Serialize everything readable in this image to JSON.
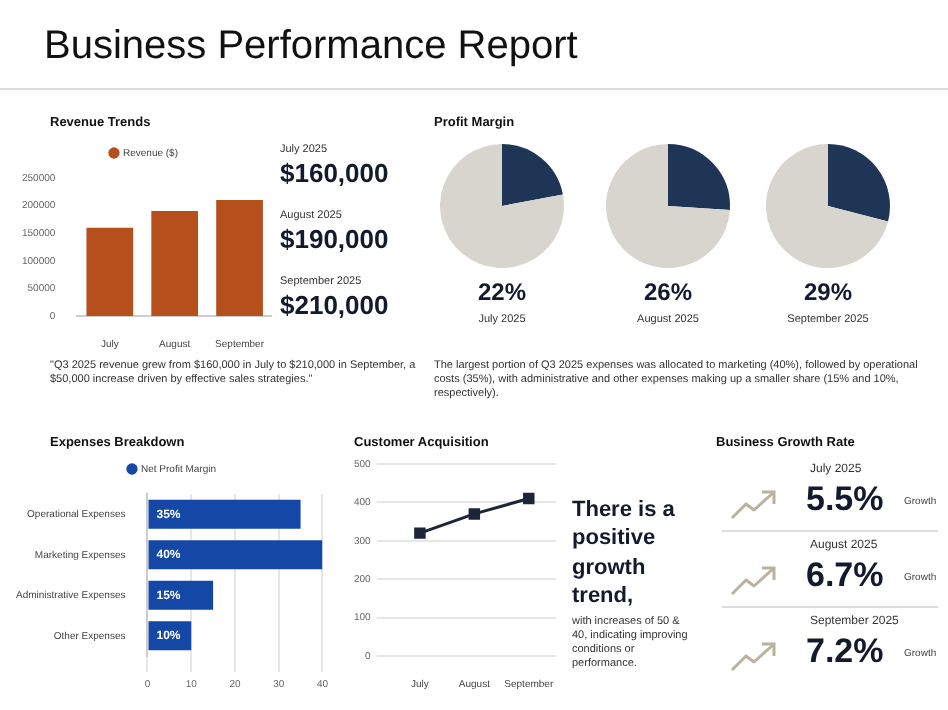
{
  "chart_data": [
    {
      "type": "other",
      "title": "Business Performance Report"
    },
    {
      "type": "bar",
      "title": "Revenue Trends",
      "categories": [
        "July",
        "August",
        "September"
      ],
      "series": [
        {
          "name": "Revenue ($)",
          "color": "#b5501c",
          "values": [
            160000,
            190000,
            210000
          ]
        }
      ],
      "ylim": [
        0,
        250000
      ],
      "yticks": [
        0,
        50000,
        100000,
        150000,
        200000,
        250000
      ],
      "legend": "top",
      "annotations": [
        "July 2025",
        "$160,000",
        "August 2025",
        "$190,000",
        "September 2025",
        "$210,000",
        "\"Q3 2025 revenue grew from $160,000 in July to $210,000 in September, a $50,000 increase driven by effective sales strategies.\""
      ]
    },
    {
      "type": "pie",
      "title": "Profit Margin",
      "categories": [
        null,
        null
      ],
      "values": [
        22,
        78
      ],
      "colors": [
        "#1e3556",
        "#d8d4ce"
      ],
      "xlabel": "July 2025",
      "annotations": [
        "22%",
        "The largest portion of Q3 2025 expenses was allocated to marketing (40%), followed by operational costs (35%), with administrative and other expenses making up a smaller share (15% and 10%, respectively)."
      ]
    },
    {
      "type": "pie",
      "categories": [
        null,
        null
      ],
      "values": [
        26,
        74
      ],
      "colors": [
        "#1e3556",
        "#d8d4ce"
      ],
      "xlabel": "August 2025",
      "annotations": [
        "26%"
      ]
    },
    {
      "type": "pie",
      "categories": [
        null,
        null
      ],
      "values": [
        29,
        71
      ],
      "colors": [
        "#1e3556",
        "#d8d4ce"
      ],
      "xlabel": "September 2025",
      "annotations": [
        "29%"
      ]
    },
    {
      "type": "bar",
      "title": "Expenses Breakdown",
      "orientation": "horizontal",
      "categories": [
        "Operational Expenses",
        "Marketing Expenses",
        "Administrative Expenses",
        "Other Expenses"
      ],
      "series": [
        {
          "name": "Net Profit Margin",
          "color": "#1547a6",
          "values": [
            35,
            40,
            15,
            10
          ],
          "value_labels": [
            "35%",
            "40%",
            "15%",
            "10%"
          ]
        }
      ],
      "xlim": [
        0,
        40
      ],
      "xticks": [
        0,
        10,
        20,
        30,
        40
      ],
      "grid": "x",
      "legend": "top"
    },
    {
      "type": "line",
      "title": "Customer Acquisition",
      "categories": [
        "July",
        "August",
        "September"
      ],
      "series": [
        {
          "color": "#1c2539",
          "values": [
            320,
            370,
            410
          ]
        }
      ],
      "ylim": [
        0,
        500
      ],
      "yticks": [
        0,
        100,
        200,
        300,
        400,
        500
      ],
      "grid": "y",
      "marker": "square",
      "annotations": [
        "There is a positive growth trend,",
        "with increases of 50 & 40, indicating improving conditions or performance."
      ]
    },
    {
      "type": "other",
      "title": "Business Growth Rate",
      "annotations": [
        "July 2025",
        "5.5%",
        "Growth",
        "August 2025",
        "6.7%",
        "Growth",
        "September 2025",
        "7.2%",
        "Growth"
      ]
    }
  ]
}
